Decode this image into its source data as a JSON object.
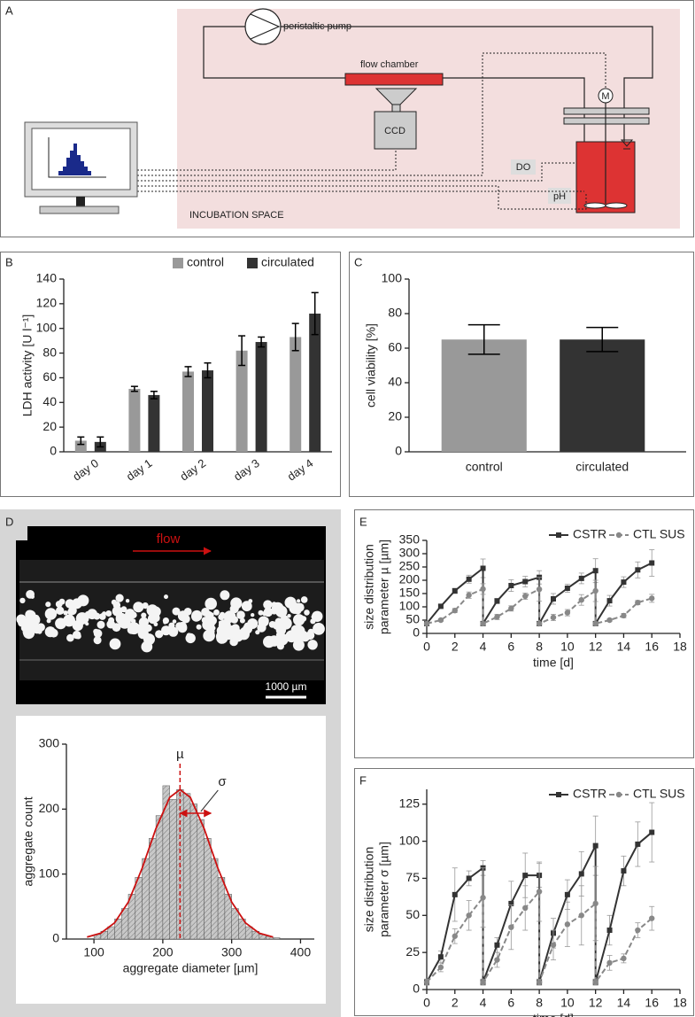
{
  "panel_labels": [
    "A",
    "B",
    "C",
    "D",
    "E",
    "F"
  ],
  "diagram": {
    "pump": "peristaltic pump",
    "flow_chamber": "flow chamber",
    "camera": "CCD",
    "motor": "M",
    "do_probe": "DO",
    "ph_probe": "pH",
    "space": "INCUBATION SPACE"
  },
  "micrograph": {
    "arrow_label": "flow",
    "scale_bar": "1000 µm"
  },
  "chart_data": [
    {
      "type": "bar",
      "ylabel": "LDH activity [U l⁻¹]",
      "categories": [
        "day 0",
        "day 1",
        "day 2",
        "day 3",
        "day 4"
      ],
      "series": [
        {
          "name": "control",
          "color": "#999999",
          "values": [
            9,
            51,
            65,
            82,
            93
          ],
          "errors": [
            3,
            2,
            4,
            12,
            11
          ]
        },
        {
          "name": "circulated",
          "color": "#333333",
          "values": [
            8,
            46,
            66,
            89,
            112
          ],
          "errors": [
            4,
            3,
            6,
            4,
            17
          ]
        }
      ],
      "ylim": [
        0,
        140
      ],
      "yticks": [
        0,
        20,
        40,
        60,
        80,
        100,
        120,
        140
      ],
      "legend": "top-right"
    },
    {
      "type": "bar",
      "ylabel": "cell viability [%]",
      "categories": [
        "control",
        "circulated"
      ],
      "values": [
        65,
        65
      ],
      "errors": [
        8.5,
        7
      ],
      "colors": [
        "#999999",
        "#333333"
      ],
      "ylim": [
        0,
        100
      ],
      "yticks": [
        0,
        20,
        40,
        60,
        80,
        100
      ]
    },
    {
      "type": "histogram",
      "xlabel": "aggregate diameter [µm]",
      "ylabel": "aggregate count",
      "bins": [
        100,
        110,
        120,
        130,
        140,
        150,
        160,
        170,
        180,
        190,
        200,
        210,
        220,
        230,
        240,
        250,
        260,
        270,
        280,
        290,
        300,
        310,
        320,
        330,
        340,
        350,
        360,
        370
      ],
      "counts": [
        7,
        12,
        19,
        31,
        47,
        69,
        95,
        124,
        155,
        190,
        236,
        215,
        230,
        224,
        208,
        184,
        155,
        124,
        95,
        69,
        47,
        31,
        19,
        12,
        7,
        4,
        2
      ],
      "fit": {
        "color": "#cc1111",
        "x": [
          90,
          110,
          130,
          150,
          170,
          190,
          210,
          225,
          240,
          260,
          280,
          300,
          320,
          340,
          360
        ],
        "values": [
          3,
          9,
          25,
          57,
          109,
          170,
          218,
          230,
          218,
          170,
          109,
          57,
          25,
          9,
          3
        ]
      },
      "annotations": [
        {
          "label": "µ",
          "x": 225
        },
        {
          "label": "σ",
          "x": [
            225,
            270
          ]
        }
      ],
      "xlim": [
        60,
        420
      ],
      "xticks": [
        100,
        200,
        300,
        400
      ],
      "ylim": [
        0,
        300
      ],
      "yticks": [
        0,
        100,
        200,
        300
      ]
    },
    {
      "type": "line",
      "xlabel": "time [d]",
      "ylabel": [
        "size distribution",
        "parameter µ [µm]"
      ],
      "x": [
        0,
        1,
        2,
        3,
        4,
        4,
        5,
        6,
        7,
        8,
        8,
        9,
        10,
        11,
        12,
        12,
        13,
        14,
        15,
        16
      ],
      "series": [
        {
          "name": "CSTR",
          "color": "#333333",
          "linestyle": "solid",
          "marker": "square",
          "values": [
            37,
            102,
            160,
            204,
            245,
            37,
            122,
            180,
            195,
            211,
            37,
            130,
            170,
            207,
            236,
            37,
            123,
            193,
            239,
            265
          ],
          "errors": [
            3,
            5,
            10,
            15,
            35,
            3,
            10,
            22,
            20,
            25,
            3,
            20,
            15,
            20,
            45,
            3,
            20,
            20,
            30,
            50
          ]
        },
        {
          "name": "CTL SUS",
          "color": "#888888",
          "linestyle": "dashed",
          "marker": "circle",
          "values": [
            37,
            50,
            86,
            144,
            167,
            37,
            62,
            94,
            140,
            166,
            37,
            60,
            78,
            126,
            160,
            37,
            50,
            67,
            116,
            132
          ],
          "errors": [
            3,
            5,
            8,
            12,
            20,
            3,
            10,
            10,
            12,
            45,
            3,
            12,
            12,
            20,
            40,
            3,
            5,
            8,
            8,
            15
          ]
        }
      ],
      "xlim": [
        0,
        18
      ],
      "xticks": [
        0,
        2,
        4,
        6,
        8,
        10,
        12,
        14,
        16,
        18
      ],
      "ylim": [
        0,
        350
      ],
      "yticks": [
        0,
        50,
        100,
        150,
        200,
        250,
        300,
        350
      ],
      "legend": "top-right"
    },
    {
      "type": "line",
      "xlabel": "time [d]",
      "ylabel": [
        "size distribution",
        "parameter σ [µm]"
      ],
      "x": [
        0,
        1,
        2,
        3,
        4,
        4,
        5,
        6,
        7,
        8,
        8,
        9,
        10,
        11,
        12,
        12,
        13,
        14,
        15,
        16
      ],
      "series": [
        {
          "name": "CSTR",
          "color": "#333333",
          "linestyle": "solid",
          "marker": "square",
          "values": [
            5,
            22,
            64,
            75,
            82,
            5,
            30,
            58,
            77,
            77,
            5,
            38,
            64,
            78,
            97,
            5,
            40,
            80,
            98,
            106
          ],
          "errors": [
            2,
            4,
            18,
            5,
            5,
            2,
            5,
            15,
            15,
            8,
            2,
            10,
            10,
            15,
            20,
            2,
            10,
            10,
            15,
            20
          ]
        },
        {
          "name": "CTL SUS",
          "color": "#888888",
          "linestyle": "dashed",
          "marker": "circle",
          "values": [
            5,
            15,
            36,
            50,
            62,
            5,
            20,
            42,
            55,
            66,
            5,
            30,
            44,
            50,
            58,
            5,
            18,
            21,
            40,
            48
          ],
          "errors": [
            2,
            3,
            5,
            10,
            20,
            2,
            5,
            15,
            15,
            20,
            2,
            10,
            15,
            20,
            25,
            2,
            5,
            3,
            5,
            8
          ]
        }
      ],
      "xlim": [
        0,
        18
      ],
      "xticks": [
        0,
        2,
        4,
        6,
        8,
        10,
        12,
        14,
        16,
        18
      ],
      "ylim": [
        0,
        135
      ],
      "yticks": [
        0,
        25,
        50,
        75,
        100,
        125
      ],
      "legend": "top-right"
    }
  ]
}
